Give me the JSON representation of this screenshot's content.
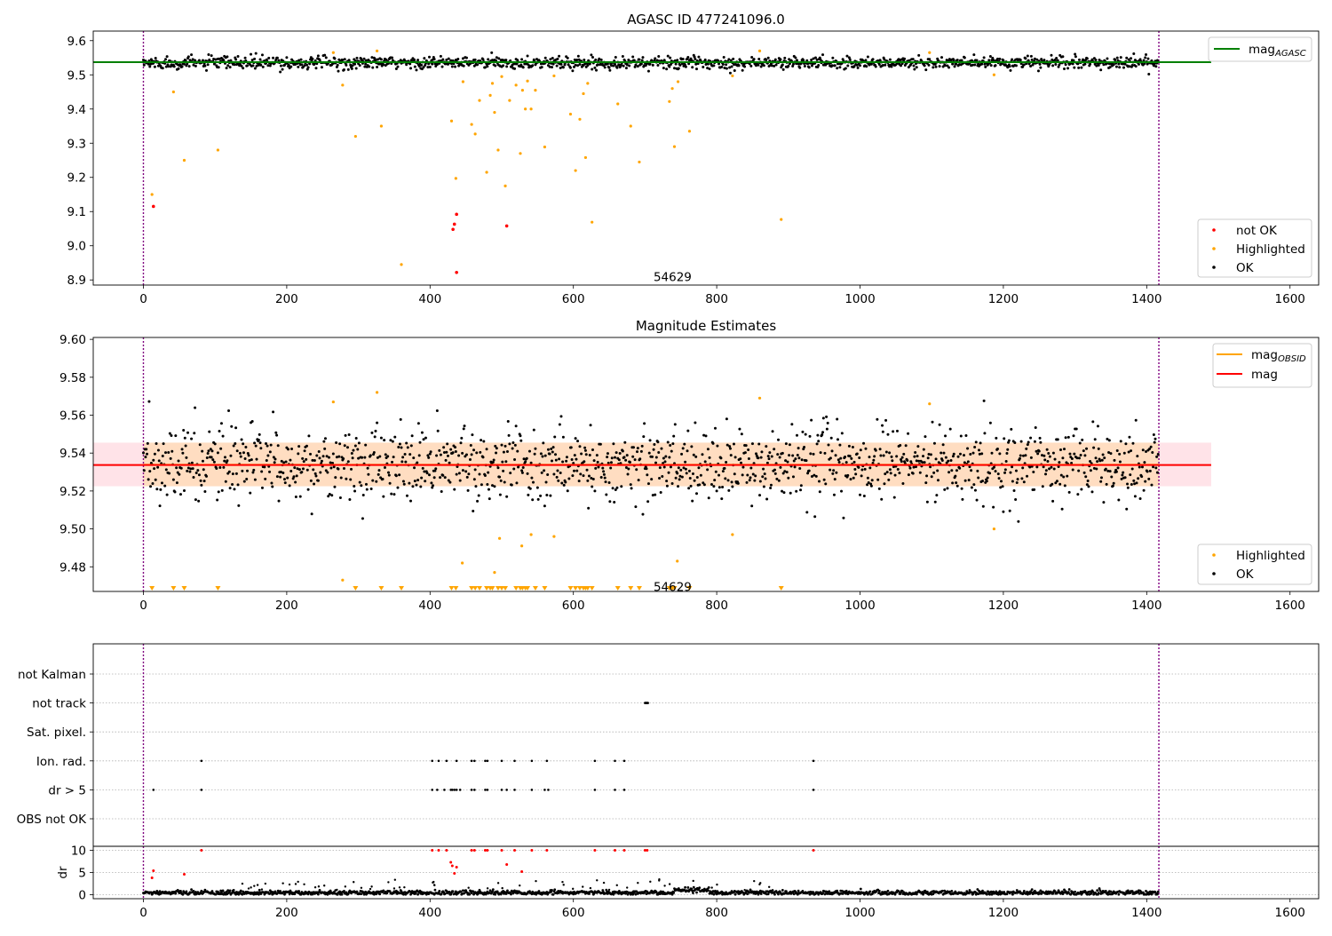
{
  "figure": {
    "title": "AGASC ID 477241096.0",
    "obsid_label": "54629"
  },
  "chart_data": [
    {
      "type": "scatter",
      "title": "AGASC ID 477241096.0",
      "xlim": [
        -70,
        1640
      ],
      "ylim": [
        8.885,
        9.628
      ],
      "x_ticks": [
        0,
        200,
        400,
        600,
        800,
        1000,
        1200,
        1400,
        1600
      ],
      "y_ticks": [
        8.9,
        9.0,
        9.1,
        9.2,
        9.3,
        9.4,
        9.5,
        9.6
      ],
      "obs_boundaries": [
        0,
        1417
      ],
      "annotation": {
        "text": "54629",
        "x": 705,
        "y": 8.91
      },
      "legend_lines": [
        {
          "label": "mag",
          "subscript": "AGASC",
          "color": "#008000"
        }
      ],
      "legend_points": [
        {
          "label": "not OK",
          "color": "#ff0000"
        },
        {
          "label": "Highlighted",
          "color": "#ffa500"
        },
        {
          "label": "OK",
          "color": "#000000"
        }
      ],
      "reference_lines": [
        {
          "name": "mag_AGASC",
          "y": 9.537,
          "x_range": [
            -70,
            1490
          ],
          "color": "#008000"
        }
      ],
      "ok_points": {
        "count": 1417,
        "center": 9.535,
        "spread": 0.009,
        "color": "#000000"
      },
      "highlighted_points": {
        "color": "#ffa500",
        "x": [
          12,
          42,
          57,
          104,
          265,
          278,
          296,
          326,
          332,
          360,
          430,
          436,
          446,
          458,
          463,
          469,
          479,
          484,
          487,
          490,
          495,
          500,
          505,
          511,
          520,
          526,
          529,
          533,
          536,
          541,
          547,
          560,
          573,
          596,
          603,
          609,
          614,
          617,
          620,
          626,
          662,
          680,
          692,
          734,
          738,
          741,
          746,
          762,
          822,
          860,
          890,
          1097,
          1187
        ],
        "y": [
          9.15,
          9.45,
          9.25,
          9.28,
          9.565,
          9.47,
          9.32,
          9.57,
          9.35,
          8.945,
          9.365,
          9.197,
          9.48,
          9.355,
          9.327,
          9.425,
          9.215,
          9.44,
          9.475,
          9.39,
          9.28,
          9.495,
          9.175,
          9.425,
          9.47,
          9.27,
          9.455,
          9.4,
          9.482,
          9.4,
          9.455,
          9.289,
          9.497,
          9.385,
          9.22,
          9.37,
          9.445,
          9.258,
          9.475,
          9.069,
          9.415,
          9.35,
          9.245,
          9.422,
          9.46,
          9.29,
          9.48,
          9.335,
          9.497,
          9.57,
          9.077,
          9.565,
          9.5
        ]
      },
      "not_ok_points": {
        "color": "#ff0000",
        "x": [
          14,
          432,
          434,
          437,
          437,
          507
        ],
        "y": [
          9.115,
          9.048,
          9.063,
          9.092,
          8.922,
          9.058
        ]
      }
    },
    {
      "type": "scatter",
      "title": "Magnitude Estimates",
      "xlim": [
        -70,
        1640
      ],
      "ylim": [
        9.467,
        9.601
      ],
      "x_ticks": [
        0,
        200,
        400,
        600,
        800,
        1000,
        1200,
        1400,
        1600
      ],
      "y_ticks": [
        9.48,
        9.5,
        9.52,
        9.54,
        9.56,
        9.58,
        9.6
      ],
      "obs_boundaries": [
        0,
        1417
      ],
      "annotation": {
        "text": "54629",
        "x": 705,
        "y": 9.4695
      },
      "legend_lines": [
        {
          "label": "mag",
          "subscript": "OBSID",
          "color": "#ffa500"
        },
        {
          "label": "mag",
          "subscript": "",
          "color": "#ff0000"
        }
      ],
      "legend_points": [
        {
          "label": "Highlighted",
          "color": "#ffa500"
        },
        {
          "label": "OK",
          "color": "#000000"
        }
      ],
      "reference_lines": [
        {
          "name": "mag_OBSID",
          "y": 9.5338,
          "x_range": [
            0,
            1417
          ],
          "color": "#ffa500"
        },
        {
          "name": "mag",
          "y": 9.5337,
          "x_range": [
            -70,
            1490
          ],
          "color": "#ff0000"
        }
      ],
      "bands": [
        {
          "name": "mag",
          "y_range": [
            9.5225,
            9.5455
          ],
          "x_range": [
            -70,
            1490
          ],
          "color": "#ffc0cb"
        },
        {
          "name": "mag_OBSID",
          "y_range": [
            9.5225,
            9.5455
          ],
          "x_range": [
            0,
            1417
          ],
          "color": "#ffdab0"
        }
      ],
      "ok_points": {
        "count": 1417,
        "center": 9.534,
        "spread": 0.0095,
        "color": "#000000"
      },
      "highlighted_points": {
        "color": "#ffa500",
        "x": [
          265,
          278,
          326,
          445,
          490,
          497,
          528,
          541,
          573,
          822,
          860,
          1097,
          1187,
          745
        ],
        "y": [
          9.567,
          9.473,
          9.572,
          9.482,
          9.477,
          9.495,
          9.491,
          9.497,
          9.496,
          9.497,
          9.569,
          9.566,
          9.5,
          9.483
        ]
      },
      "clipped_markers": {
        "color": "#ffa500",
        "x": [
          12,
          42,
          57,
          104,
          296,
          332,
          360,
          430,
          436,
          458,
          463,
          469,
          479,
          484,
          487,
          495,
          500,
          505,
          520,
          526,
          529,
          533,
          536,
          547,
          560,
          596,
          603,
          609,
          614,
          617,
          620,
          626,
          662,
          680,
          692,
          734,
          738,
          741,
          762,
          890
        ]
      }
    },
    {
      "type": "scatter",
      "title": "",
      "xlim": [
        -70,
        1640
      ],
      "x_ticks": [
        0,
        200,
        400,
        600,
        800,
        1000,
        1200,
        1400,
        1600
      ],
      "obs_boundaries": [
        0,
        1417
      ],
      "flag_rows": [
        "not Kalman",
        "not track",
        "Sat. pixel.",
        "Ion. rad.",
        "dr > 5",
        "OBS not OK"
      ],
      "flags": {
        "not track": [
          700,
          701,
          702,
          703,
          704
        ],
        "Ion. rad.": [
          81,
          403,
          412,
          423,
          437,
          458,
          462,
          477,
          480,
          500,
          518,
          542,
          563,
          630,
          658,
          671,
          935
        ],
        "dr > 5": [
          14,
          81,
          403,
          410,
          420,
          429,
          431,
          434,
          437,
          442,
          458,
          462,
          477,
          480,
          500,
          507,
          518,
          542,
          560,
          565,
          630,
          658,
          671,
          935
        ]
      },
      "dr_axis": {
        "label": "dr",
        "ylim": [
          -0.5,
          10.5
        ],
        "y_ticks": [
          0,
          5,
          10
        ]
      },
      "dr_red_points": {
        "color": "#ff0000",
        "x": [
          12,
          14,
          57,
          81,
          403,
          412,
          423,
          429,
          431,
          434,
          437,
          458,
          462,
          477,
          480,
          500,
          507,
          518,
          528,
          542,
          563,
          630,
          658,
          671,
          700,
          703,
          935
        ],
        "y": [
          3.8,
          5.4,
          4.6,
          10,
          10,
          10,
          10,
          7.3,
          6.5,
          4.8,
          6.2,
          10,
          10,
          10,
          10,
          10,
          6.8,
          10,
          5.2,
          10,
          10,
          10,
          10,
          10,
          10,
          10,
          10
        ]
      },
      "dr_ok_points": {
        "count": 1417,
        "center": 0.45,
        "spread": 0.25,
        "color": "#000000"
      }
    }
  ]
}
